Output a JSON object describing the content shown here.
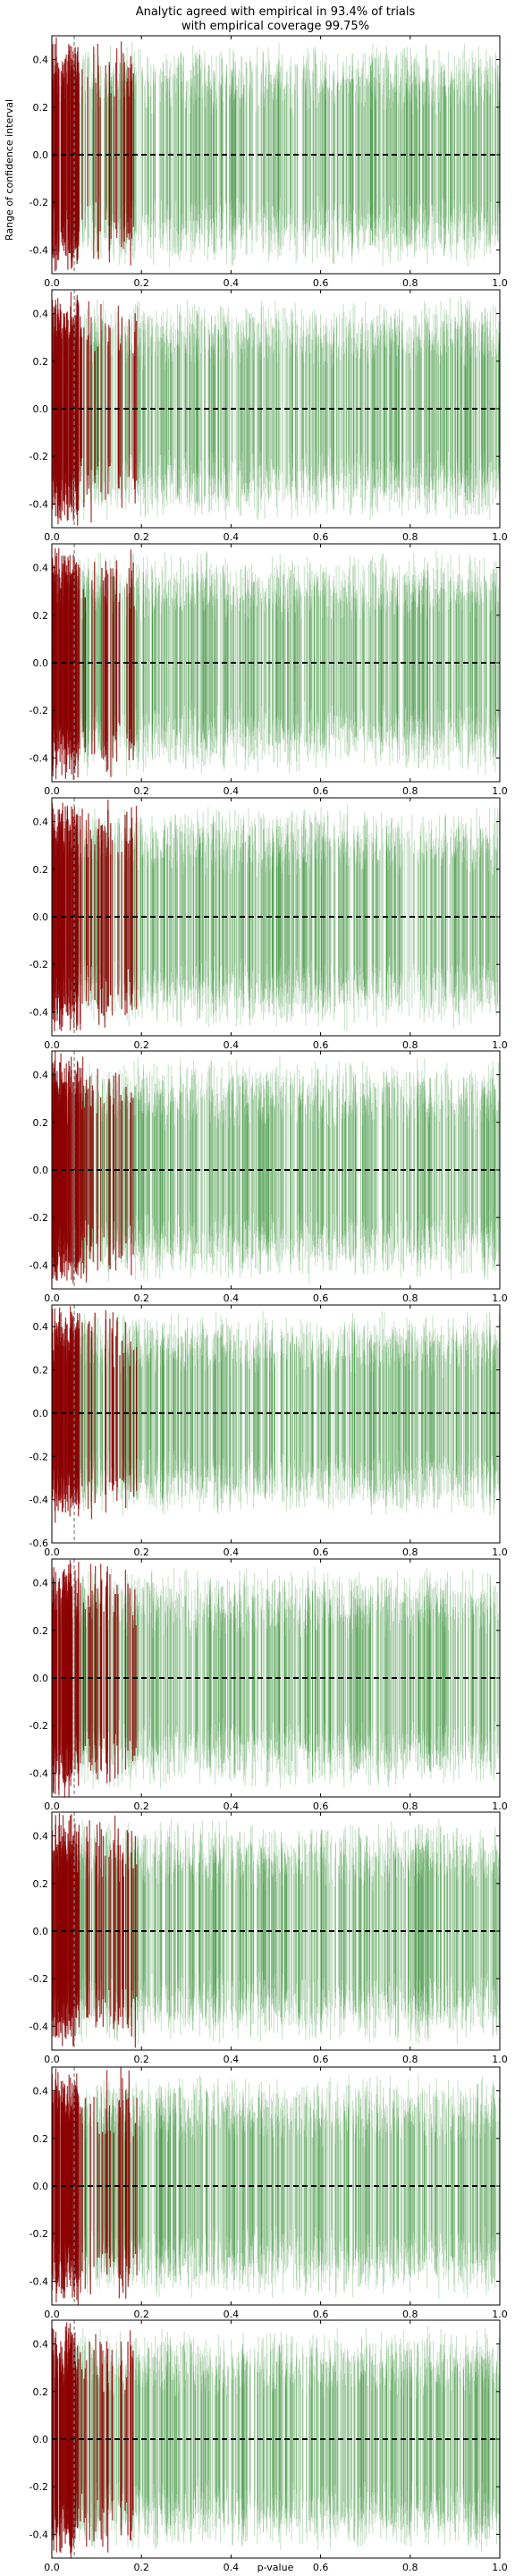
{
  "chart_data": {
    "type": "line",
    "title_line1": "Analytic agreed with empirical in 93.4% of trials",
    "title_line2": "with empirical coverage 99.75%",
    "xlabel": "p-value",
    "ylabel": "Range of confidence interval",
    "xlim": [
      0.0,
      1.0
    ],
    "xticks": [
      "0.0",
      "0.2",
      "0.4",
      "0.6",
      "0.8",
      "1.0"
    ],
    "reference_line_y": 0.0,
    "significance_threshold_x": 0.05,
    "colors": {
      "significant": "#8b0000",
      "nonsignificant": "#2e8b2e",
      "reference": "#000000",
      "threshold": "#808080"
    },
    "panels": [
      {
        "ylim": [
          -0.5,
          0.5
        ],
        "yticks": [
          "-0.4",
          "-0.2",
          "0.0",
          "0.2",
          "0.4"
        ]
      },
      {
        "ylim": [
          -0.5,
          0.5
        ],
        "yticks": [
          "-0.4",
          "-0.2",
          "0.0",
          "0.2",
          "0.4"
        ]
      },
      {
        "ylim": [
          -0.5,
          0.5
        ],
        "yticks": [
          "-0.4",
          "-0.2",
          "0.0",
          "0.2",
          "0.4"
        ]
      },
      {
        "ylim": [
          -0.5,
          0.5
        ],
        "yticks": [
          "-0.4",
          "-0.2",
          "0.0",
          "0.2",
          "0.4"
        ]
      },
      {
        "ylim": [
          -0.5,
          0.5
        ],
        "yticks": [
          "-0.4",
          "-0.2",
          "0.0",
          "0.2",
          "0.4"
        ]
      },
      {
        "ylim": [
          -0.6,
          0.5
        ],
        "yticks": [
          "-0.6",
          "-0.4",
          "-0.2",
          "0.0",
          "0.2",
          "0.4"
        ]
      },
      {
        "ylim": [
          -0.5,
          0.5
        ],
        "yticks": [
          "-0.4",
          "-0.2",
          "0.0",
          "0.2",
          "0.4"
        ]
      },
      {
        "ylim": [
          -0.5,
          0.5
        ],
        "yticks": [
          "-0.4",
          "-0.2",
          "0.0",
          "0.2",
          "0.4"
        ]
      },
      {
        "ylim": [
          -0.5,
          0.5
        ],
        "yticks": [
          "-0.4",
          "-0.2",
          "0.0",
          "0.2",
          "0.4"
        ]
      },
      {
        "ylim": [
          -0.5,
          0.5
        ],
        "yticks": [
          "-0.4",
          "-0.2",
          "0.0",
          "0.2",
          "0.4"
        ]
      }
    ]
  }
}
